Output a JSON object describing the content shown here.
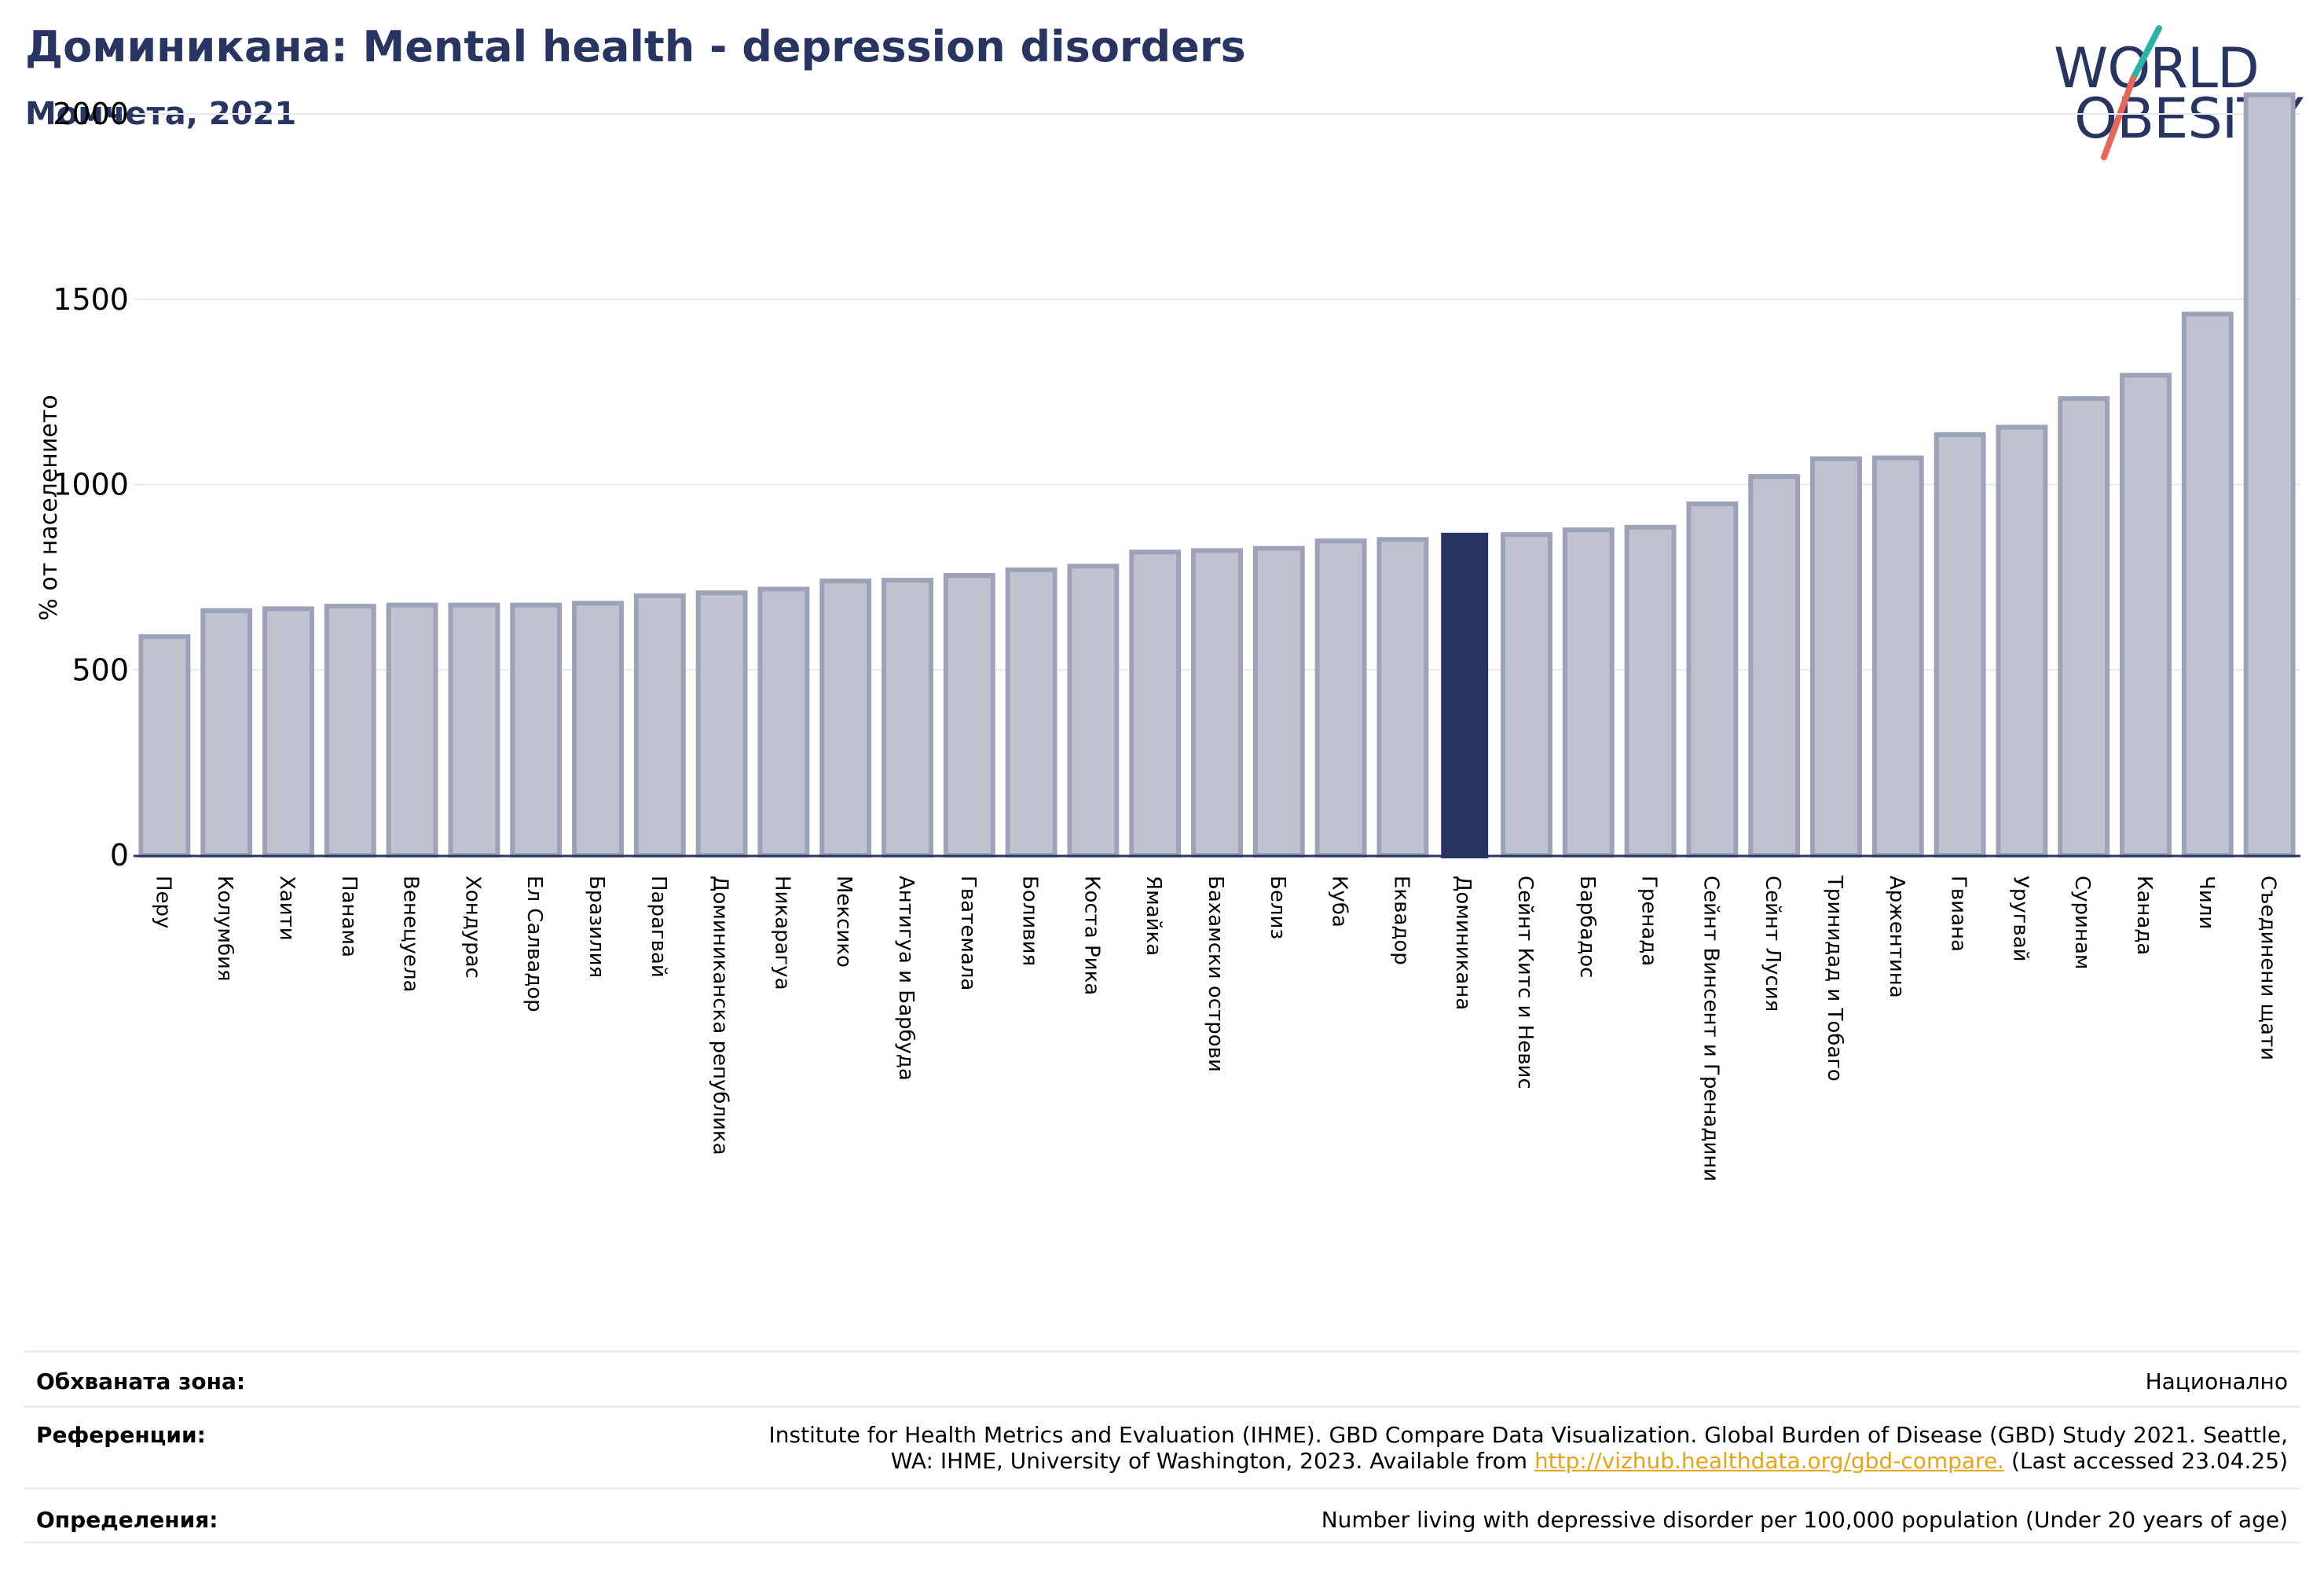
{
  "header": {
    "title": "Доминикана: Mental health - depression disorders",
    "subtitle": "Момчета, 2021"
  },
  "logo": {
    "line1": "WORLD",
    "line2": "OBESITY",
    "colors": {
      "text": "#283562",
      "slash_top": "#2ab3a6",
      "slash_bottom": "#e8665a"
    }
  },
  "chart_data": {
    "type": "bar",
    "title": "",
    "xlabel": "",
    "ylabel": "% от населението",
    "ylim": [
      0,
      2100
    ],
    "yticks": [
      0,
      500,
      1000,
      1500,
      2000
    ],
    "grid": true,
    "highlight_category": "Доминикана",
    "colors": {
      "bar": "#bfc2cf",
      "bar_edge": "#9da2b8",
      "highlight": "#283562",
      "grid": "#e6e8ee",
      "axis": "#283562"
    },
    "categories": [
      "Перу",
      "Колумбия",
      "Хаити",
      "Панама",
      "Венецуела",
      "Хондурас",
      "Ел Салвадор",
      "Бразилия",
      "Парагвай",
      "Доминиканска република",
      "Никарагуа",
      "Мексико",
      "Антигуа и Барбуда",
      "Гватемала",
      "Боливия",
      "Коста Рика",
      "Ямайка",
      "Бахамски острови",
      "Белиз",
      "Куба",
      "Еквадор",
      "Доминикана",
      "Сейнт Китс и Невис",
      "Барбадос",
      "Гренада",
      "Сейнт Винсент и Гренадини",
      "Сейнт Лусия",
      "Тринидад и Тобаго",
      "Аржентина",
      "Гвиана",
      "Уругвай",
      "Суринам",
      "Канада",
      "Чили",
      "Съединени щати"
    ],
    "values": [
      590,
      660,
      665,
      672,
      675,
      675,
      675,
      680,
      700,
      708,
      718,
      740,
      742,
      755,
      770,
      780,
      818,
      822,
      828,
      848,
      852,
      870,
      865,
      878,
      885,
      948,
      1022,
      1070,
      1072,
      1135,
      1155,
      1232,
      1295,
      1460,
      2052
    ]
  },
  "footer": {
    "rows": [
      {
        "label": "Обхваната зона:",
        "value": "Национално"
      },
      {
        "label": "Референции:",
        "value_line1": "Institute for Health Metrics and Evaluation (IHME). GBD Compare Data Visualization. Global Burden of Disease (GBD) Study 2021. Seattle,",
        "value_line2_pre": "WA: IHME, University of Washington, 2023. Available from ",
        "link_text": "http://vizhub.healthdata.org/gbd-compare.",
        "value_line2_post": " (Last accessed 23.04.25)"
      },
      {
        "label": "Определения:",
        "value": "Number living with depressive disorder per 100,000 population (Under 20 years of age)"
      }
    ]
  }
}
